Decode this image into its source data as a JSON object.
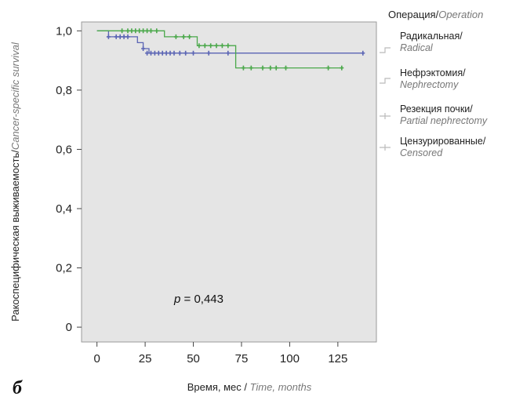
{
  "chart_data": {
    "type": "line",
    "title": "",
    "xlabel": "Время, мес / ",
    "xlabel_en": "Time, months",
    "ylabel": "Ракоспецифическая выживаемость/",
    "ylabel_en": "Cancer-specific survival",
    "xlim": [
      -8,
      145
    ],
    "ylim": [
      -0.05,
      1.03
    ],
    "xticks": [
      "0",
      "25",
      "50",
      "75",
      "100",
      "125"
    ],
    "yticks": [
      "0",
      "0,2",
      "0,4",
      "0,6",
      "0,8",
      "1,0"
    ],
    "grid": false,
    "plot_background": "#e5e5e5",
    "legend": {
      "placement": "right",
      "title": "Операция/",
      "title_en": "Operation",
      "entries": [
        {
          "label": "Радикальная/",
          "label_en": "Radical",
          "color": "#bbbbbb",
          "symbol": "step"
        },
        {
          "label": "Нефрэктомия/",
          "label_en": "Nephrectomy",
          "color": "#bbbbbb",
          "symbol": "step"
        },
        {
          "label": "Резекция почки/",
          "label_en": "Partial nephrectomy",
          "color": "#bbbbbb",
          "symbol": "plus"
        },
        {
          "label": "Цензурированные/",
          "label_en": "Censored",
          "color": "#bbbbbb",
          "symbol": "plus"
        }
      ]
    },
    "series": [
      {
        "color": "#5a64b4",
        "steps": [
          [
            0,
            1.0
          ],
          [
            6,
            0.98
          ],
          [
            20,
            0.98
          ],
          [
            21,
            0.96
          ],
          [
            24,
            0.94
          ],
          [
            27,
            0.925
          ],
          [
            138,
            0.925
          ]
        ],
        "censored": [
          [
            6,
            0.98
          ],
          [
            10,
            0.98
          ],
          [
            12,
            0.98
          ],
          [
            14,
            0.98
          ],
          [
            16,
            0.98
          ],
          [
            24,
            0.94
          ],
          [
            26,
            0.925
          ],
          [
            28,
            0.925
          ],
          [
            30,
            0.925
          ],
          [
            32,
            0.925
          ],
          [
            34,
            0.925
          ],
          [
            36,
            0.925
          ],
          [
            38,
            0.925
          ],
          [
            40,
            0.925
          ],
          [
            43,
            0.925
          ],
          [
            46,
            0.925
          ],
          [
            50,
            0.925
          ],
          [
            58,
            0.925
          ],
          [
            68,
            0.925
          ],
          [
            138,
            0.925
          ]
        ]
      },
      {
        "color": "#4aa84a",
        "steps": [
          [
            0,
            1.0
          ],
          [
            34,
            1.0
          ],
          [
            35,
            0.98
          ],
          [
            51,
            0.98
          ],
          [
            52,
            0.95
          ],
          [
            71,
            0.95
          ],
          [
            72,
            0.875
          ],
          [
            127,
            0.875
          ]
        ],
        "censored": [
          [
            13,
            1.0
          ],
          [
            16,
            1.0
          ],
          [
            18,
            1.0
          ],
          [
            20,
            1.0
          ],
          [
            22,
            1.0
          ],
          [
            24,
            1.0
          ],
          [
            26,
            1.0
          ],
          [
            28,
            1.0
          ],
          [
            31,
            1.0
          ],
          [
            41,
            0.98
          ],
          [
            45,
            0.98
          ],
          [
            48,
            0.98
          ],
          [
            53,
            0.95
          ],
          [
            56,
            0.95
          ],
          [
            59,
            0.95
          ],
          [
            62,
            0.95
          ],
          [
            65,
            0.95
          ],
          [
            68,
            0.95
          ],
          [
            76,
            0.875
          ],
          [
            80,
            0.875
          ],
          [
            86,
            0.875
          ],
          [
            90,
            0.875
          ],
          [
            93,
            0.875
          ],
          [
            98,
            0.875
          ],
          [
            120,
            0.875
          ],
          [
            127,
            0.875
          ]
        ]
      }
    ],
    "annotations": [
      {
        "text_prefix": "p",
        "text": " = 0,443",
        "x": 49,
        "y": 0.095
      }
    ],
    "panel_label": "б"
  }
}
